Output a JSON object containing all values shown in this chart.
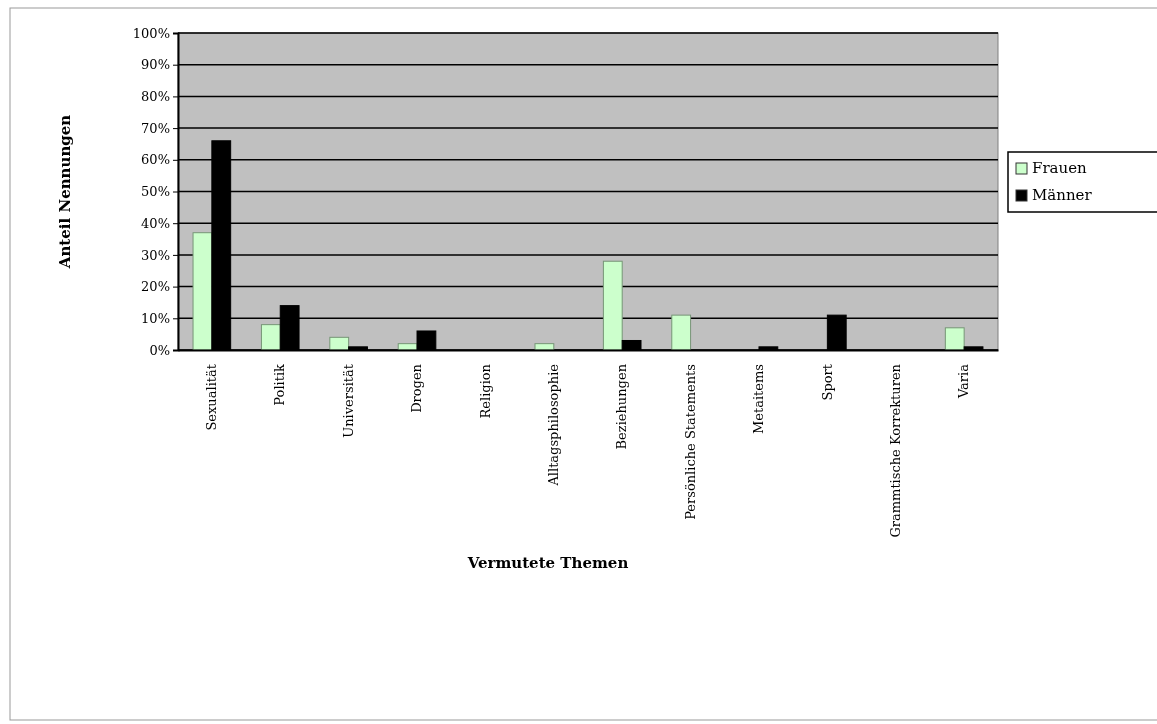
{
  "chart_data": {
    "type": "bar",
    "xlabel": "Vermutete Themen",
    "ylabel": "Anteil Nennungen",
    "categories": [
      "Sexualität",
      "Politik",
      "Universität",
      "Drogen",
      "Religion",
      "Alltagsphilosophie",
      "Beziehungen",
      "Persönliche Statements",
      "Metaitems",
      "Sport",
      "Grammtische Korrekturen",
      "Varia"
    ],
    "series": [
      {
        "name": "Frauen",
        "color": "#ccffcc",
        "values": [
          37,
          8,
          4,
          2,
          0,
          2,
          28,
          11,
          0,
          0,
          0,
          7
        ]
      },
      {
        "name": "Männer",
        "color": "#000000",
        "values": [
          66,
          14,
          1,
          6,
          0,
          0,
          3,
          0,
          1,
          11,
          0,
          1
        ]
      }
    ],
    "ylim": [
      0,
      100
    ],
    "yticks": [
      {
        "value": 0,
        "label": "0%"
      },
      {
        "value": 10,
        "label": "10%"
      },
      {
        "value": 20,
        "label": "20%"
      },
      {
        "value": 30,
        "label": "30%"
      },
      {
        "value": 40,
        "label": "40%"
      },
      {
        "value": 50,
        "label": "50%"
      },
      {
        "value": 60,
        "label": "60%"
      },
      {
        "value": 70,
        "label": "70%"
      },
      {
        "value": 80,
        "label": "80%"
      },
      {
        "value": 90,
        "label": "90%"
      },
      {
        "value": 100,
        "label": "100%"
      }
    ],
    "grid": "y",
    "legend": "right"
  }
}
